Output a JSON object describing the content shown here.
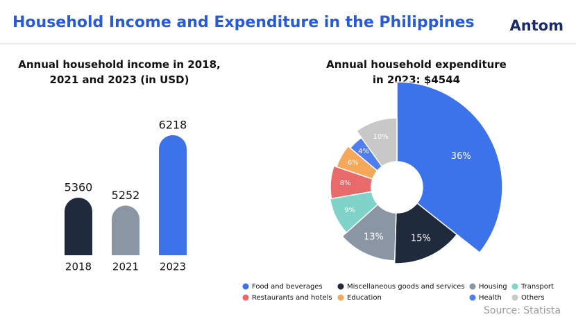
{
  "title": "Household Income and Expenditure in the Philippines",
  "brand": "Antom",
  "source": "Source: Statista",
  "chart_data": [
    {
      "type": "bar",
      "title": "Annual household income in 2018, 2021 and 2023 (in USD)",
      "categories": [
        "2018",
        "2021",
        "2023"
      ],
      "values": [
        5360,
        5252,
        6218
      ],
      "colors": [
        "#1f2a3c",
        "#8a96a3",
        "#3d73ea"
      ],
      "ylim": [
        4570,
        6360
      ]
    },
    {
      "type": "pie",
      "title": "Annual household expenditure in 2023: $4544",
      "categories": [
        "Food and beverages",
        "Miscellaneous goods and services",
        "Housing",
        "Transport",
        "Restaurants and hotels",
        "Education",
        "Health",
        "Others"
      ],
      "values": [
        36,
        15,
        13,
        9,
        8,
        6,
        4,
        10
      ],
      "value_labels": [
        "36%",
        "15%",
        "13%",
        "9%",
        "8%",
        "6%",
        "4%",
        "10%"
      ],
      "colors": [
        "#3d73ea",
        "#1f2a3c",
        "#8a96a3",
        "#7fd3c8",
        "#e86a6a",
        "#f4a85a",
        "#4e7ef0",
        "#c8c8c8"
      ]
    }
  ]
}
